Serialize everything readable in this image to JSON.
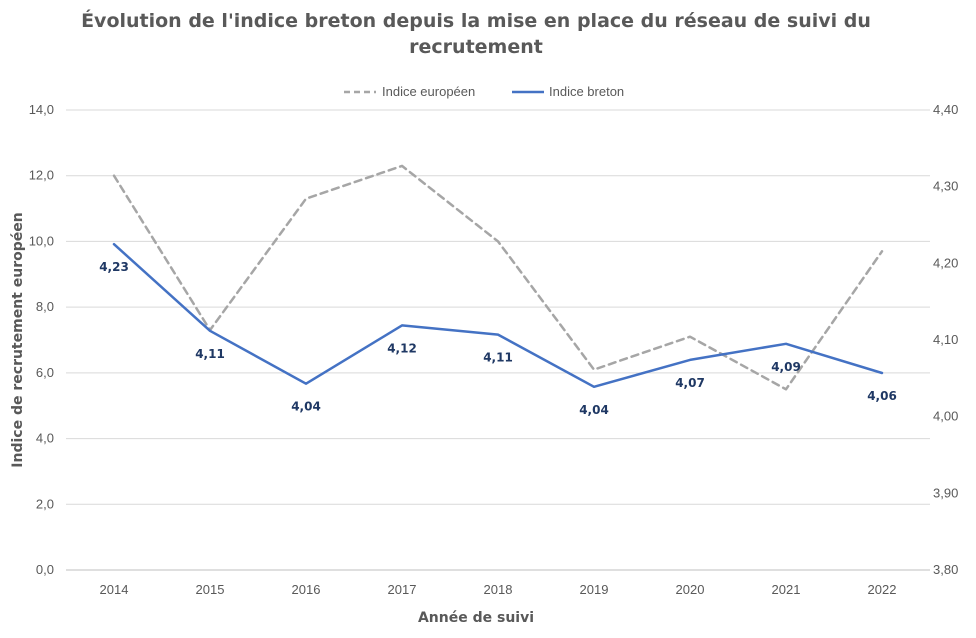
{
  "chart_data": {
    "type": "line",
    "title_line1": "Évolution de l'indice breton depuis la mise en place du réseau de suivi du",
    "title_line2": "recrutement",
    "xlabel": "Année de suivi",
    "ylabel": "Indice de recrutement européen",
    "categories": [
      "2014",
      "2015",
      "2016",
      "2017",
      "2018",
      "2019",
      "2020",
      "2021",
      "2022"
    ],
    "y_left_range": [
      0,
      14
    ],
    "y_left_ticks": [
      "0,0",
      "2,0",
      "4,0",
      "6,0",
      "8,0",
      "10,0",
      "12,0",
      "14,0"
    ],
    "y_right_range": [
      3.8,
      4.4
    ],
    "y_right_ticks": [
      "3,80",
      "3,90",
      "4,00",
      "4,10",
      "4,20",
      "4,30",
      "4,40"
    ],
    "grid": true,
    "legend_position": "top",
    "series": [
      {
        "name": "Indice européen",
        "axis": "left",
        "style": "dashed",
        "color": "#a6a6a6",
        "values": [
          12.0,
          7.3,
          11.3,
          12.3,
          10.0,
          6.1,
          7.1,
          5.5,
          9.7
        ]
      },
      {
        "name": "Indice breton",
        "axis": "right",
        "style": "solid",
        "color": "#4472c4",
        "values": [
          4.225,
          4.112,
          4.043,
          4.119,
          4.107,
          4.039,
          4.074,
          4.095,
          4.057
        ],
        "labels": [
          "4,23",
          "4,11",
          "4,04",
          "4,12",
          "4,11",
          "4,04",
          "4,07",
          "4,09",
          "4,06"
        ]
      }
    ]
  }
}
